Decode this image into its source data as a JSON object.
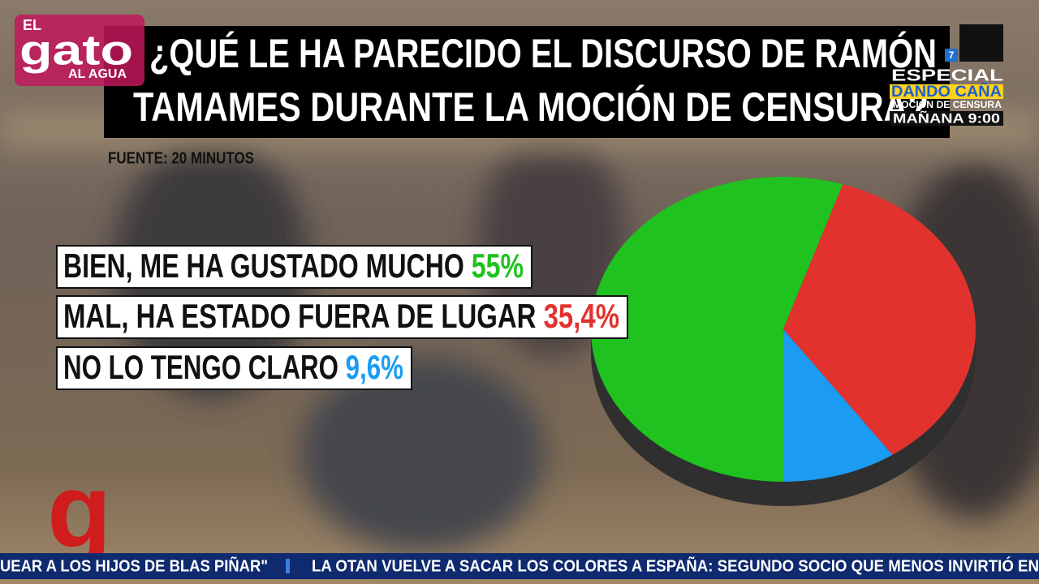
{
  "chart_data": {
    "type": "pie",
    "title": [
      "¿QUÉ LE HA PARECIDO EL DISCURSO DE RAMÓN",
      "TAMAMES DURANTE LA MOCIÓN DE CENSURA?"
    ],
    "source": "FUENTE: 20 MINUTOS",
    "categories": [
      "BIEN, ME HA GUSTADO MUCHO",
      "MAL, HA ESTADO FUERA DE LUGAR",
      "NO LO TENGO CLARO"
    ],
    "values": [
      55,
      35.4,
      9.6
    ],
    "value_labels": [
      "55%",
      "35,4%",
      "9,6%"
    ],
    "colors": [
      "#1fc21f",
      "#e2322e",
      "#1b9cf2"
    ]
  },
  "logo": {
    "top": "EL",
    "main": "gato",
    "bottom": "AL AGUA"
  },
  "promo": {
    "channel": "7",
    "line1": "ESPECIAL",
    "line2": "DANDO CAÑA",
    "line3": "MOCIÓN DE CENSURA",
    "line4": "MAÑANA 9:00"
  },
  "ticker": [
    "UEAR A LOS HIJOS DE BLAS PIÑAR\"",
    "LA OTAN VUELVE A SACAR LOS COLORES A ESPAÑA: SEGUNDO SOCIO QUE MENOS INVIRTIÓ EN"
  ]
}
